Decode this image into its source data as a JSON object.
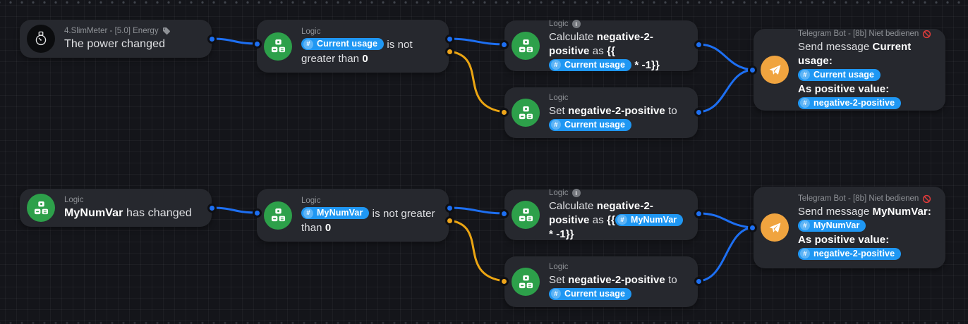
{
  "app": "flow-editor",
  "colors": {
    "background": "#14151a",
    "node_background": "#26282e",
    "chip_blue": "#1f97f3",
    "wire_true_blue": "#1d6ff2",
    "wire_false_yellow": "#eba512",
    "logic_green": "#2da04a",
    "telegram_orange": "#f0a43f",
    "ban_red": "#e23b3b",
    "subtitle_gray": "#8e9196"
  },
  "nodes": [
    {
      "id": "trigger-power-changed",
      "subtitle": "4.SlimMeter - [5.0] Energy",
      "subtitle_icon": "tag-icon",
      "icon": "power-meter-icon",
      "ports": {
        "out": [
          "blue"
        ]
      },
      "body": [
        {
          "k": "text",
          "v": "The power changed"
        }
      ]
    },
    {
      "id": "condition-current-usage-not-greater",
      "subtitle": "Logic",
      "icon": "logic-icon",
      "ports": {
        "in": "blue",
        "out": [
          "blue",
          "yellow"
        ]
      },
      "body": [
        {
          "k": "chip",
          "v": "Current usage"
        },
        {
          "k": "text",
          "v": " is not greater than "
        },
        {
          "k": "bold",
          "v": "0"
        }
      ]
    },
    {
      "id": "calculate-negative-2-positive-current-usage",
      "subtitle": "Logic",
      "subtitle_icon": "info-icon",
      "icon": "logic-icon",
      "ports": {
        "in": "blue",
        "out": [
          "blue"
        ]
      },
      "body": [
        {
          "k": "text",
          "v": "Calculate "
        },
        {
          "k": "bold",
          "v": "negative-2-positive"
        },
        {
          "k": "text",
          "v": " as "
        },
        {
          "k": "bold",
          "v": "{{"
        },
        {
          "k": "chip",
          "v": "Current usage"
        },
        {
          "k": "bold",
          "v": " * -1}}"
        }
      ]
    },
    {
      "id": "set-negative-2-positive-current-usage",
      "subtitle": "Logic",
      "icon": "logic-icon",
      "ports": {
        "in": "yellow",
        "out": [
          "blue"
        ]
      },
      "body": [
        {
          "k": "text",
          "v": "Set "
        },
        {
          "k": "bold",
          "v": "negative-2-positive"
        },
        {
          "k": "text",
          "v": " to "
        },
        {
          "k": "chip",
          "v": "Current usage"
        }
      ]
    },
    {
      "id": "telegram-send-current-usage",
      "subtitle": "Telegram Bot - [8b] Niet bedienen",
      "subtitle_icon": "ban-icon",
      "icon": "telegram-icon",
      "ports": {
        "in": "blue"
      },
      "body": [
        {
          "k": "text",
          "v": "Send message "
        },
        {
          "k": "bold",
          "v": "Current usage:"
        },
        {
          "k": "br"
        },
        {
          "k": "chip",
          "v": "Current usage"
        },
        {
          "k": "br"
        },
        {
          "k": "bold",
          "v": "As positive value:"
        },
        {
          "k": "br"
        },
        {
          "k": "chip",
          "v": "negative-2-positive"
        }
      ]
    },
    {
      "id": "trigger-mynumvar-changed",
      "subtitle": "Logic",
      "icon": "logic-icon",
      "ports": {
        "out": [
          "blue"
        ]
      },
      "body": [
        {
          "k": "bold",
          "v": "MyNumVar"
        },
        {
          "k": "text",
          "v": " has changed"
        }
      ]
    },
    {
      "id": "condition-mynumvar-not-greater",
      "subtitle": "Logic",
      "icon": "logic-icon",
      "ports": {
        "in": "blue",
        "out": [
          "blue",
          "yellow"
        ]
      },
      "body": [
        {
          "k": "chip",
          "v": "MyNumVar"
        },
        {
          "k": "text",
          "v": " is not greater than "
        },
        {
          "k": "bold",
          "v": "0"
        }
      ]
    },
    {
      "id": "calculate-negative-2-positive-mynumvar",
      "subtitle": "Logic",
      "subtitle_icon": "info-icon",
      "icon": "logic-icon",
      "ports": {
        "in": "blue",
        "out": [
          "blue"
        ]
      },
      "body": [
        {
          "k": "text",
          "v": "Calculate "
        },
        {
          "k": "bold",
          "v": "negative-2-positive"
        },
        {
          "k": "text",
          "v": " as "
        },
        {
          "k": "bold",
          "v": "{{"
        },
        {
          "k": "chip",
          "v": "MyNumVar"
        },
        {
          "k": "bold",
          "v": " * -1}}"
        }
      ]
    },
    {
      "id": "set-negative-2-positive-mynumvar-branch",
      "subtitle": "Logic",
      "icon": "logic-icon",
      "ports": {
        "in": "yellow",
        "out": [
          "blue"
        ]
      },
      "body": [
        {
          "k": "text",
          "v": "Set "
        },
        {
          "k": "bold",
          "v": "negative-2-positive"
        },
        {
          "k": "text",
          "v": " to "
        },
        {
          "k": "chip",
          "v": "Current usage"
        }
      ]
    },
    {
      "id": "telegram-send-mynumvar",
      "subtitle": "Telegram Bot - [8b] Niet bedienen",
      "subtitle_icon": "ban-icon",
      "icon": "telegram-icon",
      "ports": {
        "in": "blue"
      },
      "body": [
        {
          "k": "text",
          "v": "Send message "
        },
        {
          "k": "bold",
          "v": "MyNumVar:"
        },
        {
          "k": "br"
        },
        {
          "k": "chip",
          "v": "MyNumVar"
        },
        {
          "k": "br"
        },
        {
          "k": "bold",
          "v": "As positive value:"
        },
        {
          "k": "br"
        },
        {
          "k": "chip",
          "v": "negative-2-positive"
        }
      ]
    }
  ]
}
